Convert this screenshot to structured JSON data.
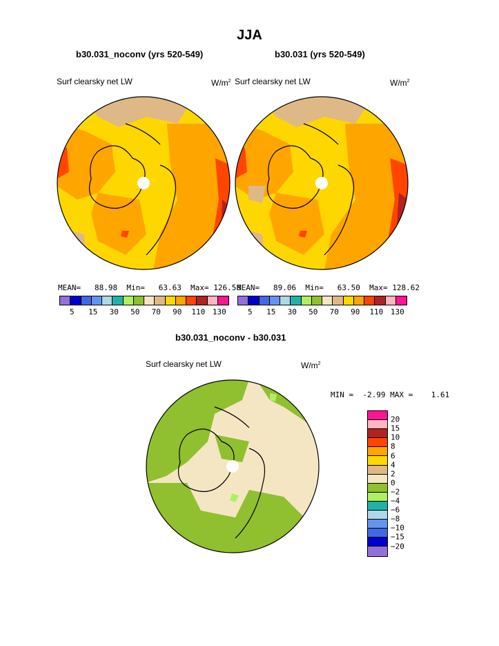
{
  "main_title": "JJA",
  "panels": {
    "left": {
      "case_title": "b30.031_noconv (yrs 520-549)",
      "field": "Surf clearsky net LW",
      "units_base": "W/m",
      "units_exp": "2",
      "mean_label": "MEAN=",
      "mean": "88.98",
      "min_label": "Min=",
      "min": "63.63",
      "max_label": "Max=",
      "max": "126.58"
    },
    "right": {
      "case_title": "b30.031 (yrs 520-549)",
      "field": "Surf clearsky net LW",
      "units_base": "W/m",
      "units_exp": "2",
      "mean_label": "MEAN=",
      "mean": "89.06",
      "min_label": "Min=",
      "min": "63.50",
      "max_label": "Max=",
      "max": "128.62"
    },
    "diff": {
      "case_title": "b30.031_noconv - b30.031",
      "field": "Surf clearsky net LW",
      "units_base": "W/m",
      "units_exp": "2",
      "min_label": "MIN =",
      "min": "-2.99",
      "max_label": "MAX =",
      "max": "1.61"
    }
  },
  "colorbar_top": {
    "colors": [
      "#9370db",
      "#0000cd",
      "#4169e1",
      "#6495ed",
      "#add8e6",
      "#20b2aa",
      "#b0f060",
      "#90bf30",
      "#f5e6c3",
      "#deb887",
      "#ffd700",
      "#ffa500",
      "#ff4500",
      "#b22222",
      "#ffb6c1",
      "#ff1493"
    ],
    "tick_labels": [
      "5",
      "15",
      "30",
      "50",
      "70",
      "90",
      "110",
      "130"
    ]
  },
  "colorbar_diff": {
    "colors": [
      "#ff1493",
      "#ffb6c1",
      "#b22222",
      "#ff4500",
      "#ffa500",
      "#ffd700",
      "#deb887",
      "#f5e6c3",
      "#90bf30",
      "#b0f060",
      "#20b2aa",
      "#add8e6",
      "#6495ed",
      "#4169e1",
      "#0000cd",
      "#9370db"
    ],
    "tick_labels": [
      "20",
      "15",
      "10",
      "8",
      "6",
      "4",
      "2",
      "0",
      "-2",
      "-4",
      "-6",
      "-8",
      "-10",
      "-15",
      "-20"
    ]
  },
  "colors": {
    "yellow": "#ffd700",
    "orange": "#ffa500",
    "red_orange": "#ff4500",
    "tan": "#deb887",
    "beige": "#f5e6c3",
    "green": "#90bf30",
    "light_green": "#b0f060",
    "dark_red": "#b22222",
    "pink": "#ffb6c1"
  }
}
